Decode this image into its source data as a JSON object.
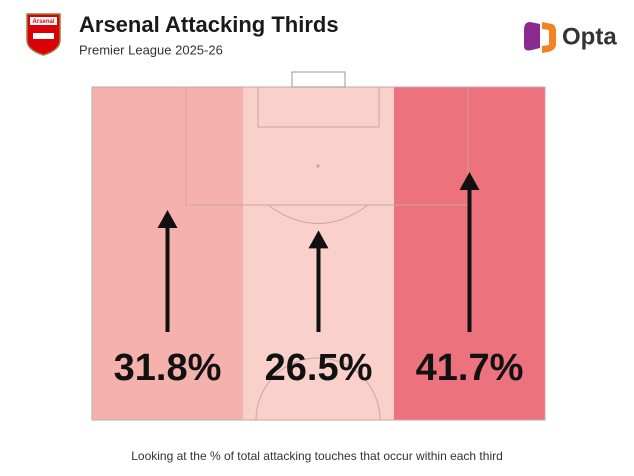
{
  "chart_data": {
    "type": "pitch-thirds",
    "title": "Arsenal Attacking Thirds",
    "subtitle": "Premier League 2025-26",
    "badge_text": "Arsenal",
    "brand": "Opta",
    "caption": "Looking at the % of total attacking touches that occur within each third",
    "values": [
      31.8,
      26.5,
      41.7
    ],
    "value_labels": [
      "31.8%",
      "26.5%",
      "41.7%"
    ],
    "colors": [
      "#f5b1ab",
      "#f9d0ca",
      "#ec727e"
    ]
  }
}
